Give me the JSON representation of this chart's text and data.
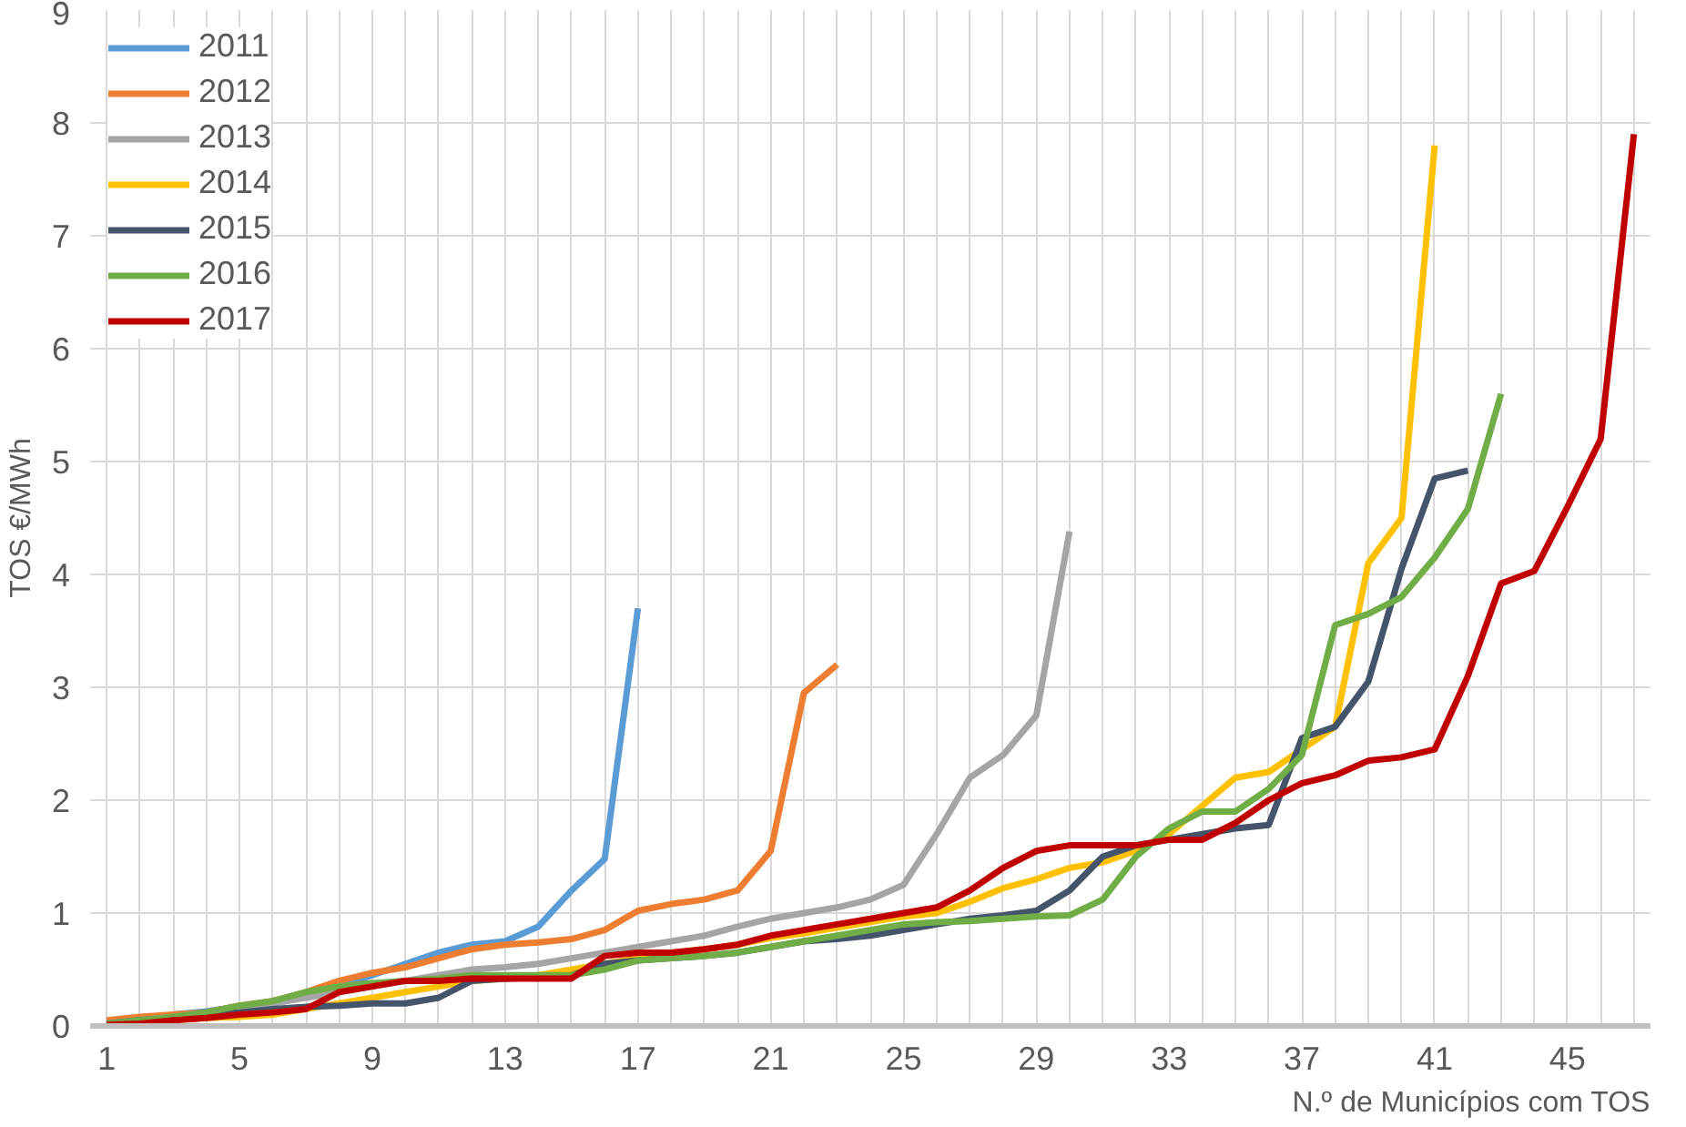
{
  "chart_data": {
    "type": "line",
    "xlabel": "N.º de Municípios com TOS",
    "ylabel": "TOS €/MWh",
    "xlim": [
      0.5,
      47.5
    ],
    "ylim": [
      0,
      9
    ],
    "xticks": [
      1,
      5,
      9,
      13,
      17,
      21,
      25,
      29,
      33,
      37,
      41,
      45
    ],
    "yticks": [
      0,
      1,
      2,
      3,
      4,
      5,
      6,
      7,
      8,
      9
    ],
    "grid": true,
    "legend": "top left",
    "marker": "none",
    "line_style": "solid",
    "series": [
      {
        "name": "2011",
        "color": "#5b9bd5",
        "x": [
          1,
          2,
          3,
          4,
          5,
          6,
          7,
          8,
          9,
          10,
          11,
          12,
          13,
          14,
          15,
          16,
          17
        ],
        "values": [
          0.03,
          0.06,
          0.1,
          0.13,
          0.17,
          0.22,
          0.28,
          0.35,
          0.45,
          0.55,
          0.65,
          0.72,
          0.75,
          0.88,
          1.2,
          1.48,
          3.7
        ]
      },
      {
        "name": "2012",
        "color": "#ed7d31",
        "x": [
          1,
          2,
          3,
          4,
          5,
          6,
          7,
          8,
          9,
          10,
          11,
          12,
          13,
          14,
          15,
          16,
          17,
          18,
          19,
          20,
          21,
          22,
          23
        ],
        "values": [
          0.05,
          0.08,
          0.1,
          0.12,
          0.18,
          0.22,
          0.3,
          0.4,
          0.47,
          0.52,
          0.6,
          0.68,
          0.72,
          0.74,
          0.77,
          0.85,
          1.02,
          1.08,
          1.12,
          1.2,
          1.55,
          2.95,
          3.2
        ]
      },
      {
        "name": "2013",
        "color": "#a5a5a5",
        "x": [
          1,
          2,
          3,
          4,
          5,
          6,
          7,
          8,
          9,
          10,
          11,
          12,
          13,
          14,
          15,
          16,
          17,
          18,
          19,
          20,
          21,
          22,
          23,
          24,
          25,
          26,
          27,
          28,
          29,
          30
        ],
        "values": [
          0.02,
          0.05,
          0.08,
          0.1,
          0.15,
          0.2,
          0.25,
          0.3,
          0.35,
          0.4,
          0.45,
          0.5,
          0.52,
          0.55,
          0.6,
          0.65,
          0.7,
          0.75,
          0.8,
          0.88,
          0.95,
          1.0,
          1.05,
          1.12,
          1.25,
          1.7,
          2.2,
          2.4,
          2.75,
          4.38
        ]
      },
      {
        "name": "2014",
        "color": "#ffc000",
        "x": [
          3,
          4,
          5,
          6,
          7,
          8,
          9,
          10,
          11,
          12,
          13,
          14,
          15,
          16,
          17,
          18,
          19,
          20,
          21,
          22,
          23,
          24,
          25,
          26,
          27,
          28,
          29,
          30,
          31,
          32,
          33,
          34,
          35,
          36,
          37,
          38,
          39,
          40,
          41
        ],
        "values": [
          0.05,
          0.07,
          0.08,
          0.1,
          0.15,
          0.2,
          0.25,
          0.3,
          0.35,
          0.4,
          0.42,
          0.45,
          0.5,
          0.55,
          0.6,
          0.65,
          0.68,
          0.72,
          0.78,
          0.82,
          0.87,
          0.92,
          0.97,
          1.0,
          1.1,
          1.22,
          1.3,
          1.4,
          1.45,
          1.55,
          1.7,
          1.95,
          2.2,
          2.25,
          2.45,
          2.65,
          4.1,
          4.5,
          7.8
        ]
      },
      {
        "name": "2015",
        "color": "#44546a",
        "x": [
          1,
          2,
          3,
          4,
          5,
          6,
          7,
          8,
          9,
          10,
          11,
          12,
          13,
          14,
          15,
          16,
          17,
          18,
          19,
          20,
          21,
          22,
          23,
          24,
          25,
          26,
          27,
          28,
          29,
          30,
          31,
          32,
          33,
          34,
          35,
          36,
          37,
          38,
          39,
          40,
          41,
          42
        ],
        "values": [
          0.02,
          0.05,
          0.07,
          0.1,
          0.12,
          0.15,
          0.17,
          0.18,
          0.2,
          0.2,
          0.25,
          0.4,
          0.42,
          0.43,
          0.45,
          0.55,
          0.58,
          0.6,
          0.62,
          0.65,
          0.7,
          0.75,
          0.77,
          0.8,
          0.85,
          0.9,
          0.95,
          0.98,
          1.02,
          1.2,
          1.5,
          1.6,
          1.65,
          1.7,
          1.75,
          1.78,
          2.55,
          2.65,
          3.05,
          4.05,
          4.85,
          4.92
        ]
      },
      {
        "name": "2016",
        "color": "#70ad47",
        "x": [
          1,
          2,
          3,
          4,
          5,
          6,
          7,
          8,
          9,
          10,
          11,
          12,
          13,
          14,
          15,
          16,
          17,
          18,
          19,
          20,
          21,
          22,
          23,
          24,
          25,
          26,
          27,
          28,
          29,
          30,
          31,
          32,
          33,
          34,
          35,
          36,
          37,
          38,
          39,
          40,
          41,
          42,
          43
        ],
        "values": [
          0.02,
          0.05,
          0.08,
          0.12,
          0.18,
          0.22,
          0.3,
          0.35,
          0.38,
          0.4,
          0.42,
          0.45,
          0.45,
          0.45,
          0.45,
          0.5,
          0.58,
          0.6,
          0.62,
          0.65,
          0.7,
          0.75,
          0.8,
          0.85,
          0.9,
          0.92,
          0.93,
          0.95,
          0.97,
          0.98,
          1.12,
          1.5,
          1.75,
          1.9,
          1.9,
          2.1,
          2.4,
          3.55,
          3.65,
          3.8,
          4.15,
          4.58,
          5.6
        ]
      },
      {
        "name": "2017",
        "color": "#c00000",
        "x": [
          1,
          2,
          3,
          4,
          5,
          6,
          7,
          8,
          9,
          10,
          11,
          12,
          13,
          14,
          15,
          16,
          17,
          18,
          19,
          20,
          21,
          22,
          23,
          24,
          25,
          26,
          27,
          28,
          29,
          30,
          31,
          32,
          33,
          34,
          35,
          36,
          37,
          38,
          39,
          40,
          41,
          42,
          43,
          44,
          45,
          46,
          47
        ],
        "values": [
          0.01,
          0.02,
          0.05,
          0.07,
          0.1,
          0.12,
          0.15,
          0.3,
          0.35,
          0.4,
          0.4,
          0.42,
          0.42,
          0.42,
          0.42,
          0.62,
          0.65,
          0.65,
          0.68,
          0.72,
          0.8,
          0.85,
          0.9,
          0.95,
          1.0,
          1.05,
          1.2,
          1.4,
          1.55,
          1.6,
          1.6,
          1.6,
          1.65,
          1.65,
          1.8,
          2.0,
          2.15,
          2.22,
          2.35,
          2.38,
          2.45,
          3.1,
          3.92,
          4.03,
          4.6,
          5.2,
          7.9
        ]
      }
    ]
  }
}
